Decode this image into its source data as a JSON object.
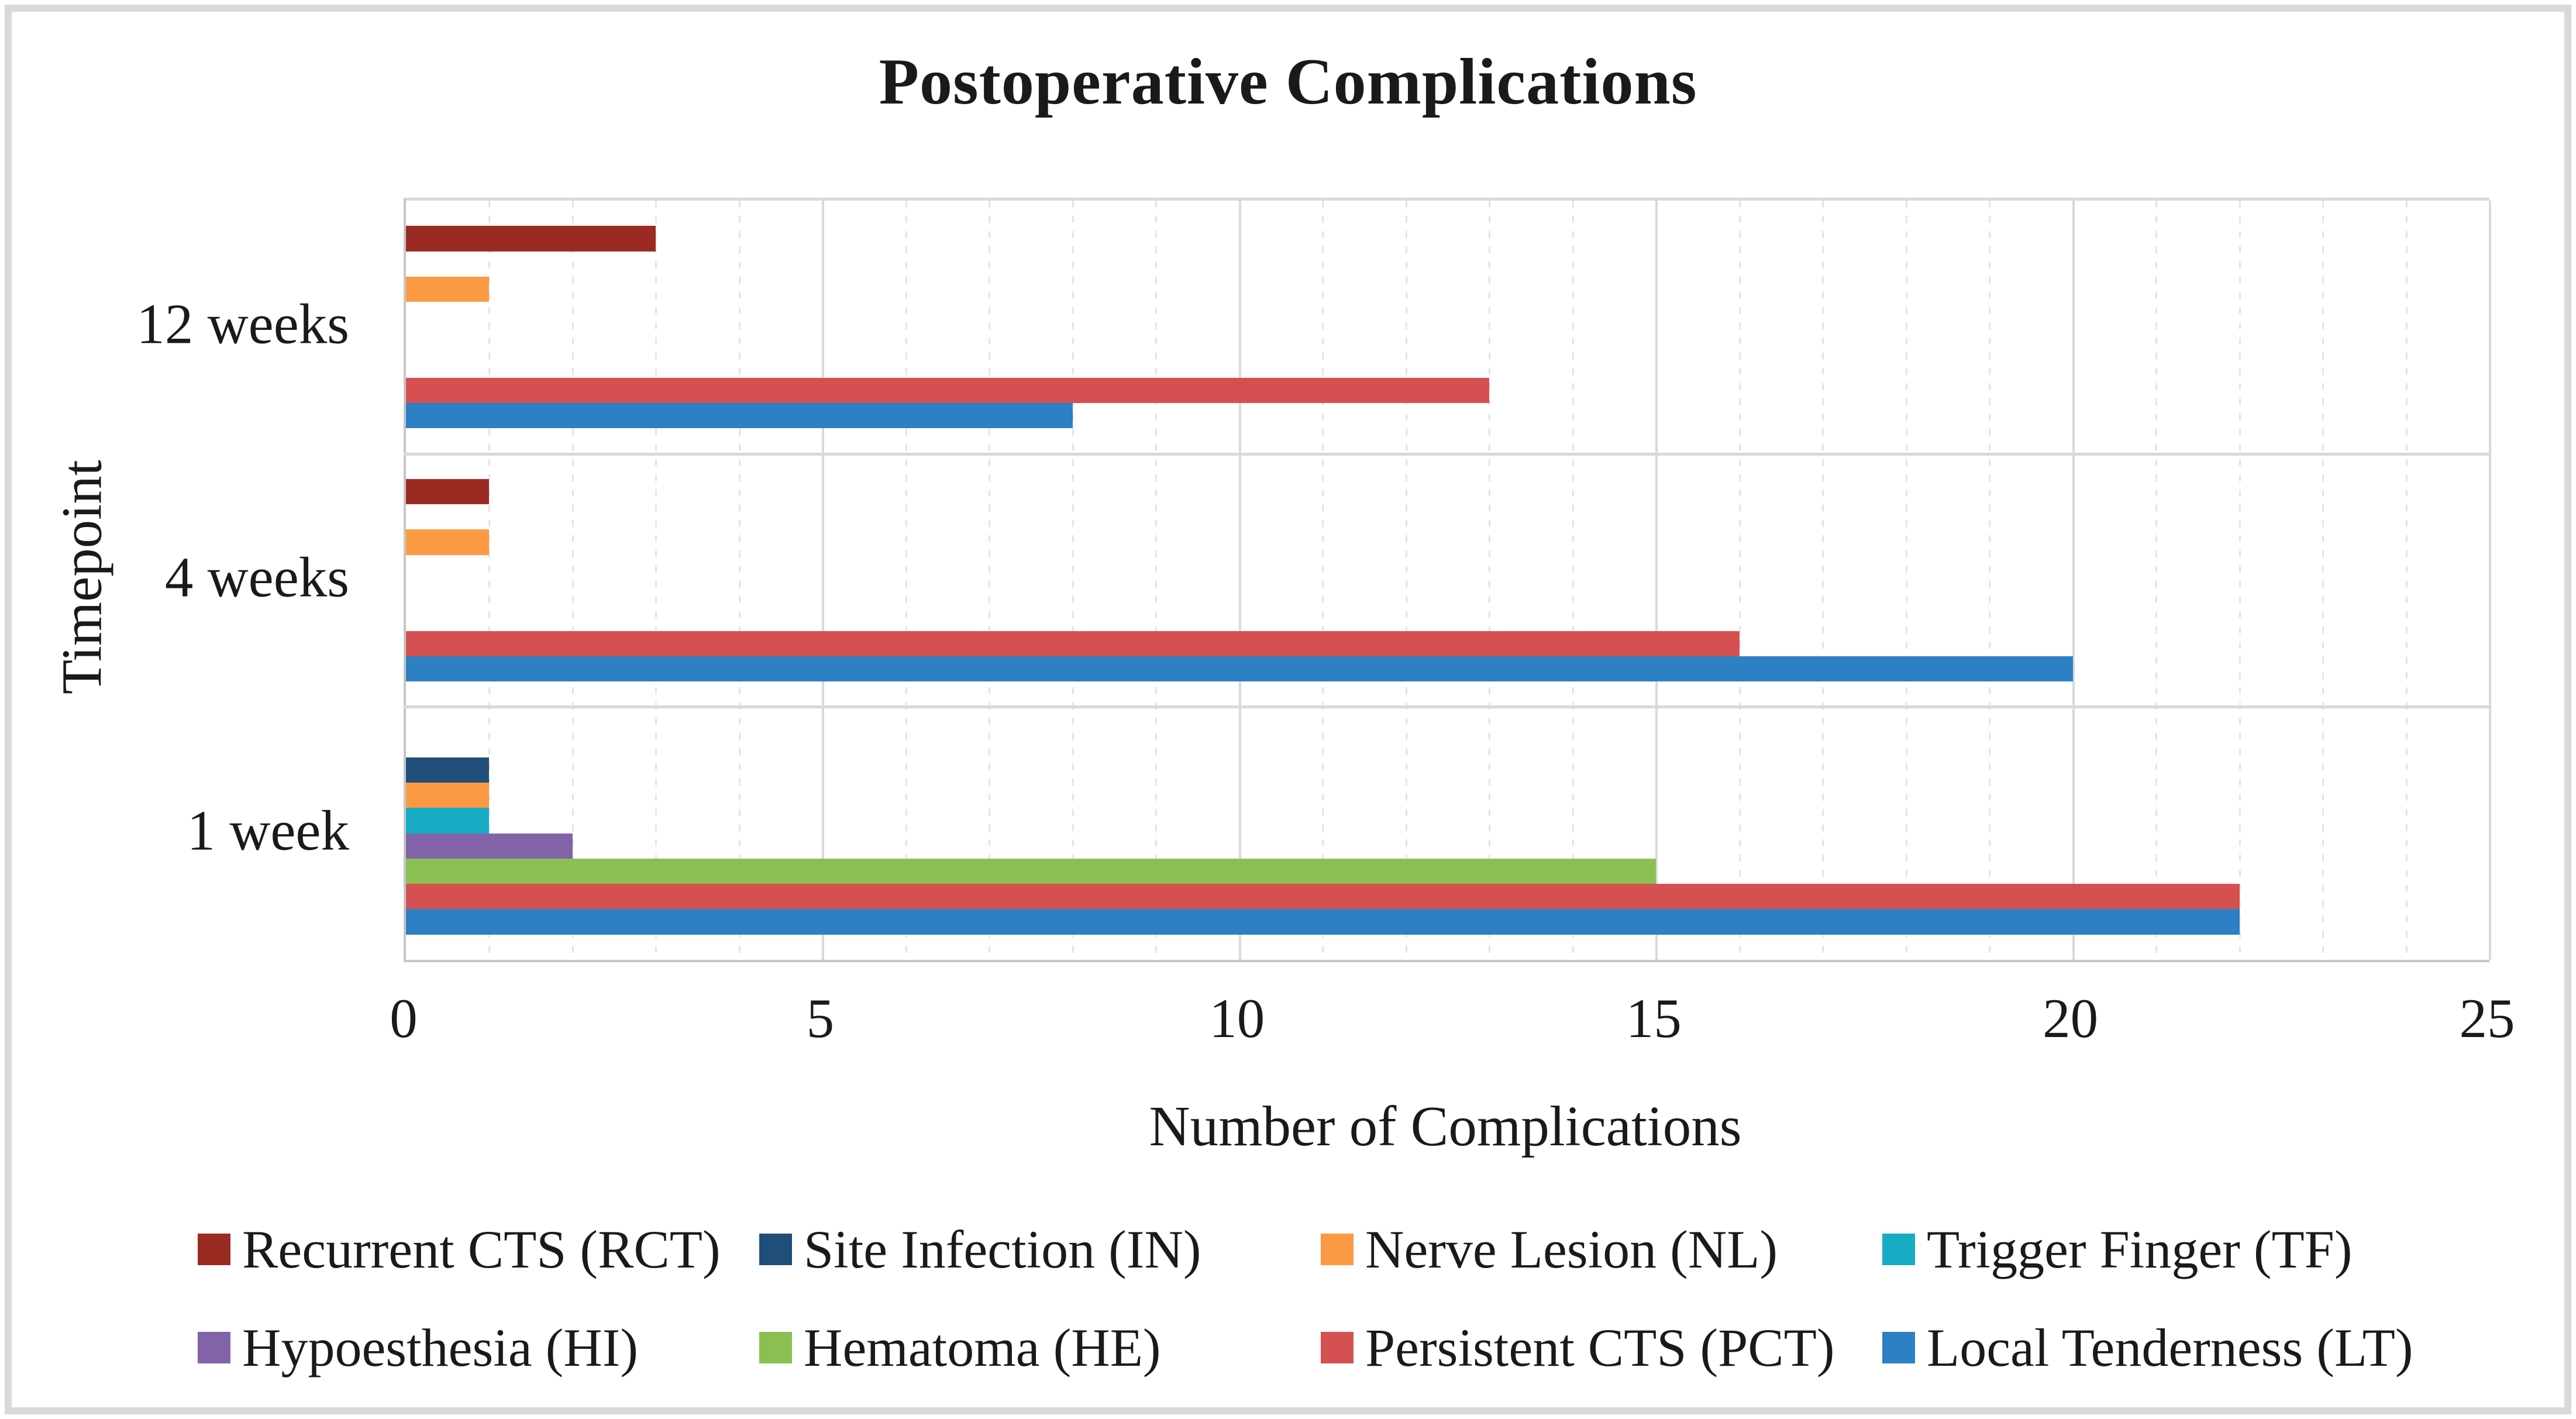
{
  "figure": {
    "title": "Postoperative Complications",
    "x_axis_title": "Number of Complications",
    "y_axis_title": "Timepoint"
  },
  "chart_data": {
    "type": "bar",
    "orientation": "horizontal",
    "title": "Postoperative Complications",
    "xlabel": "Number of Complications",
    "ylabel": "Timepoint",
    "categories": [
      "12 weeks",
      "4 weeks",
      "1 week"
    ],
    "series": [
      {
        "name": "Recurrent CTS (RCT)",
        "abbr": "RCT",
        "color": "#9b2b22",
        "values": [
          3,
          1,
          0
        ]
      },
      {
        "name": "Site Infection (IN)",
        "abbr": "IN",
        "color": "#1f4e79",
        "values": [
          0,
          0,
          1
        ]
      },
      {
        "name": "Nerve Lesion (NL)",
        "abbr": "NL",
        "color": "#fb9a42",
        "values": [
          1,
          1,
          1
        ]
      },
      {
        "name": "Trigger Finger (TF)",
        "abbr": "TF",
        "color": "#16adc4",
        "values": [
          0,
          0,
          1
        ]
      },
      {
        "name": "Hypoesthesia (HI)",
        "abbr": "HI",
        "color": "#8263a8",
        "values": [
          0,
          0,
          2
        ]
      },
      {
        "name": "Hematoma (HE)",
        "abbr": "HE",
        "color": "#8bbf52",
        "values": [
          0,
          0,
          15
        ]
      },
      {
        "name": "Persistent CTS (PCT)",
        "abbr": "PCT",
        "color": "#d55151",
        "values": [
          13,
          16,
          22
        ]
      },
      {
        "name": "Local Tenderness (LT)",
        "abbr": "LT",
        "color": "#2d80c3",
        "values": [
          8,
          20,
          22
        ]
      }
    ],
    "xlim": [
      0,
      25
    ],
    "x_ticks": [
      0,
      5,
      10,
      15,
      20,
      25
    ],
    "minor_grid_step": 1,
    "grid": true,
    "legend_position": "bottom",
    "legend_columns": 4,
    "colors": {
      "major_gridline": "#d9d9d9",
      "minor_gridline": "#e4e4e4",
      "axis_line": "#c6c6c6",
      "text": "#1a1a1a"
    }
  }
}
